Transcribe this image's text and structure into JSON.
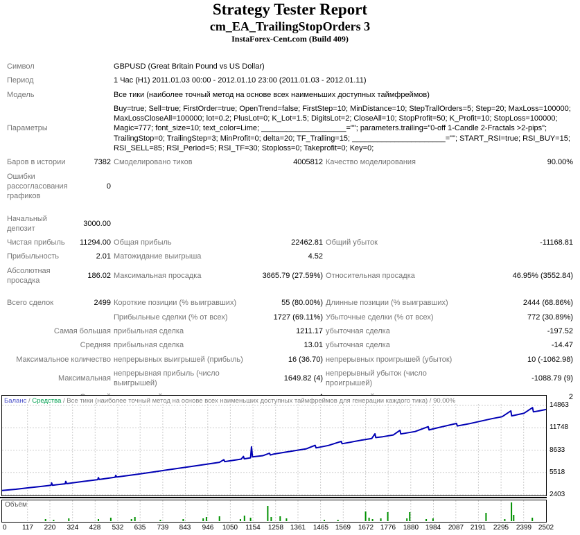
{
  "header": {
    "title": "Strategy Tester Report",
    "subtitle": "cm_EA_TrailingStopOrders 3",
    "build": "InstaForex-Cent.com (Build 409)"
  },
  "colors": {
    "balance_line": "#0000b4",
    "equity_green": "#00a050",
    "volume_green": "#009000",
    "grid": "#cdcdcd",
    "label_gray": "#757575",
    "value_black": "#000000"
  },
  "table": {
    "rows": [
      {
        "cells": [
          {
            "t": "Символ",
            "s": 2,
            "k": "l"
          },
          {
            "t": "GBPUSD (Great Britain Pound vs US Dollar)",
            "s": 4,
            "k": "v"
          }
        ]
      },
      {
        "cells": [
          {
            "t": "Период",
            "s": 2,
            "k": "l"
          },
          {
            "t": "1 Час (H1) 2011.01.03 00:00 - 2012.01.10 23:00 (2011.01.03 - 2012.01.11)",
            "s": 4,
            "k": "v"
          }
        ]
      },
      {
        "cells": [
          {
            "t": "Модель",
            "s": 2,
            "k": "l"
          },
          {
            "t": "Все тики (наиболее точный метод на основе всех наименьших доступных таймфреймов)",
            "s": 4,
            "k": "v"
          }
        ]
      },
      {
        "cells": [
          {
            "t": "Параметры",
            "s": 2,
            "k": "l"
          },
          {
            "t": "Buy=true; Sell=true; FirstOrder=true; OpenTrend=false; FirstStep=10; MinDistance=10; StepTrallOrders=5; Step=20; MaxLoss=100000; MaxLossCloseAll=100000; lot=0.2; PlusLot=0; K_Lot=1.5; DigitsLot=2; CloseAll=10; StopProfit=50; K_Profit=10; StopLoss=100000; Magic=777; font_size=10; text_color=Lime; ____________________=\"\"; parameters.trailing=\"0-off 1-Candle 2-Fractals >2-pips\"; TrailingStop=0; TrailingStep=3; MinProfit=0; delta=20; TF_Tralling=15; ______________________=\"\"; START_RSI=true; RSI_BUY=15; RSI_SELL=85; RSI_Period=5; RSI_TF=30; Stoploss=0; Takeprofit=0; Key=0;",
            "s": 4,
            "k": "v"
          }
        ]
      },
      {
        "cells": [
          {
            "t": "Баров в истории",
            "s": 1,
            "k": "l"
          },
          {
            "t": "7382",
            "s": 1,
            "k": "v"
          },
          {
            "t": "Смоделировано тиков",
            "s": 1,
            "k": "l"
          },
          {
            "t": "4005812",
            "s": 1,
            "k": "v"
          },
          {
            "t": "Качество моделирования",
            "s": 1,
            "k": "l"
          },
          {
            "t": "90.00%",
            "s": 1,
            "k": "v"
          }
        ]
      },
      {
        "cells": [
          {
            "t": "Ошибки рассогласования графиков",
            "s": 1,
            "k": "l"
          },
          {
            "t": "0",
            "s": 1,
            "k": "v"
          },
          {
            "t": "",
            "s": 4,
            "k": "l"
          }
        ]
      },
      {
        "spacer": true
      },
      {
        "cells": [
          {
            "t": "Начальный депозит",
            "s": 1,
            "k": "l"
          },
          {
            "t": "3000.00",
            "s": 1,
            "k": "v"
          },
          {
            "t": "",
            "s": 4,
            "k": "l"
          }
        ]
      },
      {
        "cells": [
          {
            "t": "Чистая прибыль",
            "s": 1,
            "k": "l"
          },
          {
            "t": "11294.00",
            "s": 1,
            "k": "v"
          },
          {
            "t": "Общая прибыль",
            "s": 1,
            "k": "l"
          },
          {
            "t": "22462.81",
            "s": 1,
            "k": "v"
          },
          {
            "t": "Общий убыток",
            "s": 1,
            "k": "l"
          },
          {
            "t": "-11168.81",
            "s": 1,
            "k": "v"
          }
        ]
      },
      {
        "cells": [
          {
            "t": "Прибыльность",
            "s": 1,
            "k": "l"
          },
          {
            "t": "2.01",
            "s": 1,
            "k": "v"
          },
          {
            "t": "Матожидание выигрыша",
            "s": 1,
            "k": "l"
          },
          {
            "t": "4.52",
            "s": 1,
            "k": "v"
          },
          {
            "t": "",
            "s": 2,
            "k": "l"
          }
        ]
      },
      {
        "cells": [
          {
            "t": "Абсолютная просадка",
            "s": 1,
            "k": "l"
          },
          {
            "t": "186.02",
            "s": 1,
            "k": "v"
          },
          {
            "t": "Максимальная просадка",
            "s": 1,
            "k": "l"
          },
          {
            "t": "3665.79 (27.59%)",
            "s": 1,
            "k": "v"
          },
          {
            "t": "Относительная просадка",
            "s": 1,
            "k": "l"
          },
          {
            "t": "46.95% (3552.84)",
            "s": 1,
            "k": "v"
          }
        ]
      },
      {
        "spacer": true
      },
      {
        "cells": [
          {
            "t": "Всего сделок",
            "s": 1,
            "k": "l"
          },
          {
            "t": "2499",
            "s": 1,
            "k": "v"
          },
          {
            "t": "Короткие позиции (% выигравших)",
            "s": 1,
            "k": "l"
          },
          {
            "t": "55 (80.00%)",
            "s": 1,
            "k": "v"
          },
          {
            "t": "Длинные позиции (% выигравших)",
            "s": 1,
            "k": "l"
          },
          {
            "t": "2444 (68.86%)",
            "s": 1,
            "k": "v"
          }
        ]
      },
      {
        "cells": [
          {
            "t": "",
            "s": 2,
            "k": "l"
          },
          {
            "t": "Прибыльные сделки (% от всех)",
            "s": 1,
            "k": "l"
          },
          {
            "t": "1727 (69.11%)",
            "s": 1,
            "k": "v"
          },
          {
            "t": "Убыточные сделки (% от всех)",
            "s": 1,
            "k": "l"
          },
          {
            "t": "772 (30.89%)",
            "s": 1,
            "k": "v"
          }
        ]
      },
      {
        "cells": [
          {
            "t": "Самая большая",
            "s": 2,
            "k": "q"
          },
          {
            "t": "прибыльная сделка",
            "s": 1,
            "k": "l"
          },
          {
            "t": "1211.17",
            "s": 1,
            "k": "v"
          },
          {
            "t": "убыточная сделка",
            "s": 1,
            "k": "l"
          },
          {
            "t": "-197.52",
            "s": 1,
            "k": "v"
          }
        ]
      },
      {
        "cells": [
          {
            "t": "Средняя",
            "s": 2,
            "k": "q"
          },
          {
            "t": "прибыльная сделка",
            "s": 1,
            "k": "l"
          },
          {
            "t": "13.01",
            "s": 1,
            "k": "v"
          },
          {
            "t": "убыточная сделка",
            "s": 1,
            "k": "l"
          },
          {
            "t": "-14.47",
            "s": 1,
            "k": "v"
          }
        ]
      },
      {
        "cells": [
          {
            "t": "Максимальное количество",
            "s": 2,
            "k": "q"
          },
          {
            "t": "непрерывных выигрышей (прибыль)",
            "s": 1,
            "k": "l"
          },
          {
            "t": "16 (36.70)",
            "s": 1,
            "k": "v"
          },
          {
            "t": "непрерывных проигрышей (убыток)",
            "s": 1,
            "k": "l"
          },
          {
            "t": "10 (-1062.98)",
            "s": 1,
            "k": "v"
          }
        ]
      },
      {
        "cells": [
          {
            "t": "Максимальная",
            "s": 2,
            "k": "q"
          },
          {
            "t": "непрерывная прибыль (число выигрышей)",
            "s": 1,
            "k": "l"
          },
          {
            "t": "1649.82 (4)",
            "s": 1,
            "k": "v"
          },
          {
            "t": "непрерывный убыток (число проигрышей)",
            "s": 1,
            "k": "l"
          },
          {
            "t": "-1088.79 (9)",
            "s": 1,
            "k": "v"
          }
        ]
      },
      {
        "cells": [
          {
            "t": "Средний",
            "s": 2,
            "k": "q"
          },
          {
            "t": "непрерывный выигрыш",
            "s": 1,
            "k": "l"
          },
          {
            "t": "4",
            "s": 1,
            "k": "v"
          },
          {
            "t": "непрерывный проигрыш",
            "s": 1,
            "k": "l"
          },
          {
            "t": "2",
            "s": 1,
            "k": "v"
          }
        ]
      }
    ]
  },
  "chart_data": [
    {
      "type": "line",
      "title": "Баланс / Средства / Все тики (наиболее точный метод на основе всех наименьших доступных таймфреймов для генерации каждого тика) / 90.00%",
      "legend_parts": [
        {
          "text": "Баланс",
          "color": "#4a50c8"
        },
        {
          "text": " / ",
          "color": "#808080"
        },
        {
          "text": "Средства",
          "color": "#00a050"
        },
        {
          "text": " / Все тики (наиболее точный метод на основе всех наименьших доступных таймфреймов для генерации каждого тика) / 90.00%",
          "color": "#808080"
        }
      ],
      "xlim": [
        0,
        2502
      ],
      "ylim": [
        2403,
        14863
      ],
      "y_ticks": [
        14863,
        11748,
        8633,
        5518,
        2403
      ],
      "x_ticks": [
        "0",
        "117",
        "220",
        "324",
        "428",
        "532",
        "635",
        "739",
        "843",
        "946",
        "1050",
        "1154",
        "1258",
        "1361",
        "1465",
        "1569",
        "1672",
        "1776",
        "1880",
        "1984",
        "2087",
        "2191",
        "2295",
        "2399",
        "2502"
      ],
      "grid": true,
      "series": [
        {
          "name": "Баланс",
          "color": "#0000b4",
          "points": [
            [
              0,
              3000
            ],
            [
              63,
              3180
            ],
            [
              125,
              3390
            ],
            [
              188,
              3600
            ],
            [
              225,
              3730
            ],
            [
              228,
              4060
            ],
            [
              232,
              3740
            ],
            [
              250,
              3800
            ],
            [
              290,
              3940
            ],
            [
              293,
              4280
            ],
            [
              297,
              3960
            ],
            [
              375,
              4280
            ],
            [
              440,
              4520
            ],
            [
              443,
              4800
            ],
            [
              447,
              4540
            ],
            [
              500,
              4774
            ],
            [
              520,
              4860
            ],
            [
              523,
              5120
            ],
            [
              527,
              4880
            ],
            [
              625,
              5280
            ],
            [
              700,
              5600
            ],
            [
              750,
              5828
            ],
            [
              800,
              6050
            ],
            [
              900,
              6490
            ],
            [
              1000,
              6937
            ],
            [
              1020,
              7300
            ],
            [
              1024,
              7030
            ],
            [
              1100,
              7380
            ],
            [
              1110,
              7750
            ],
            [
              1114,
              7420
            ],
            [
              1143,
              7560
            ],
            [
              1147,
              9100
            ],
            [
              1152,
              7700
            ],
            [
              1200,
              7860
            ],
            [
              1230,
              8200
            ],
            [
              1234,
              7950
            ],
            [
              1251,
              8090
            ],
            [
              1300,
              8330
            ],
            [
              1400,
              8820
            ],
            [
              1440,
              9300
            ],
            [
              1444,
              8940
            ],
            [
              1501,
              9276
            ],
            [
              1560,
              9850
            ],
            [
              1564,
              9520
            ],
            [
              1650,
              10000
            ],
            [
              1700,
              10250
            ],
            [
              1715,
              10900
            ],
            [
              1719,
              10380
            ],
            [
              1751,
              10494
            ],
            [
              1800,
              10750
            ],
            [
              1830,
              11400
            ],
            [
              1834,
              10880
            ],
            [
              1900,
              11220
            ],
            [
              1960,
              11900
            ],
            [
              1964,
              11440
            ],
            [
              2002,
              11738
            ],
            [
              2090,
              12350
            ],
            [
              2094,
              12000
            ],
            [
              2150,
              12320
            ],
            [
              2252,
              13005
            ],
            [
              2300,
              13290
            ],
            [
              2340,
              14100
            ],
            [
              2344,
              13400
            ],
            [
              2400,
              13760
            ],
            [
              2440,
              14550
            ],
            [
              2444,
              13960
            ],
            [
              2470,
              14100
            ],
            [
              2502,
              14294
            ]
          ]
        }
      ]
    },
    {
      "type": "bar",
      "title": "Объём",
      "color": "#009000",
      "bars": [
        [
          200,
          3
        ],
        [
          237,
          2
        ],
        [
          307,
          4
        ],
        [
          443,
          3
        ],
        [
          500,
          5
        ],
        [
          595,
          3
        ],
        [
          611,
          6
        ],
        [
          728,
          2
        ],
        [
          833,
          3
        ],
        [
          925,
          4
        ],
        [
          940,
          6
        ],
        [
          1000,
          7
        ],
        [
          1096,
          3
        ],
        [
          1115,
          8
        ],
        [
          1143,
          5
        ],
        [
          1222,
          22
        ],
        [
          1238,
          6
        ],
        [
          1279,
          7
        ],
        [
          1308,
          4
        ],
        [
          1482,
          2
        ],
        [
          1545,
          2
        ],
        [
          1672,
          14
        ],
        [
          1688,
          5
        ],
        [
          1704,
          3
        ],
        [
          1742,
          4
        ],
        [
          1774,
          13
        ],
        [
          1862,
          4
        ],
        [
          1875,
          13
        ],
        [
          1951,
          3
        ],
        [
          1982,
          4
        ],
        [
          2226,
          12
        ],
        [
          2312,
          3
        ],
        [
          2343,
          27
        ],
        [
          2353,
          9
        ],
        [
          2439,
          5
        ]
      ]
    }
  ]
}
